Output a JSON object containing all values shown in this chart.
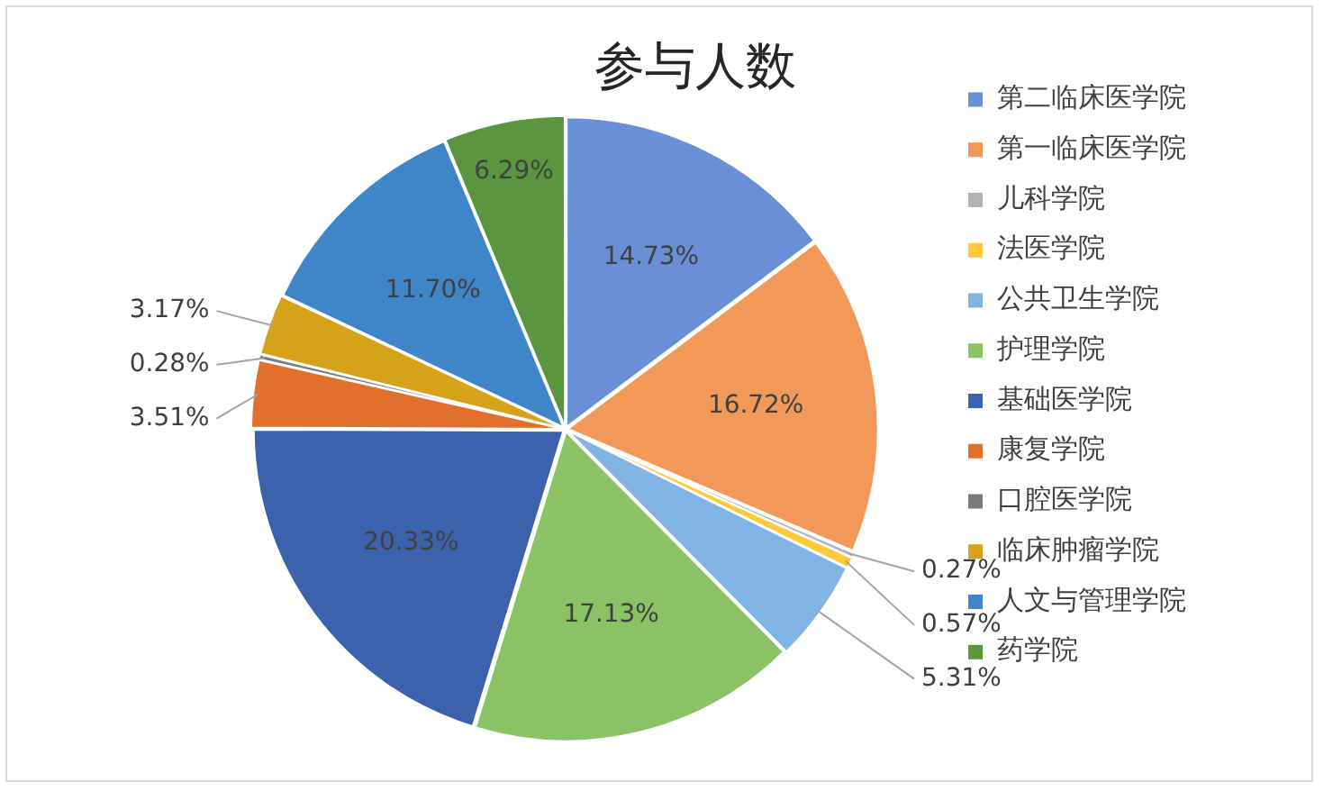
{
  "chart_data": {
    "type": "pie",
    "title": "参与人数",
    "categories": [
      "第二临床医学院",
      "第一临床医学院",
      "儿科学院",
      "法医学院",
      "公共卫生学院",
      "护理学院",
      "基础医学院",
      "康复学院",
      "口腔医学院",
      "临床肿瘤学院",
      "人文与管理学院",
      "药学院"
    ],
    "values": [
      14.73,
      16.72,
      0.27,
      0.57,
      5.31,
      17.13,
      20.33,
      3.51,
      0.28,
      3.17,
      11.7,
      6.29
    ],
    "value_labels": [
      "14.73%",
      "16.72%",
      "0.27%",
      "0.57%",
      "5.31%",
      "17.13%",
      "20.33%",
      "3.51%",
      "0.28%",
      "3.17%",
      "11.70%",
      "6.29%"
    ],
    "colors": [
      "#6b8fd6",
      "#f2995a",
      "#b4b4b4",
      "#ffc93a",
      "#82b4e3",
      "#8cc266",
      "#3d62ad",
      "#e0702c",
      "#7a7a7a",
      "#d4a31a",
      "#3f86c8",
      "#5b9540"
    ],
    "legend": "right"
  }
}
